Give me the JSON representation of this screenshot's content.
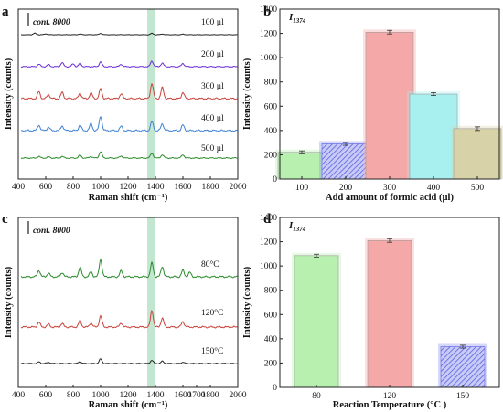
{
  "panels": {
    "a": "a",
    "b": "b",
    "c": "c",
    "d": "d"
  },
  "chart_data": [
    {
      "panel": "a",
      "type": "line",
      "xlabel": "Raman shift (cm⁻¹)",
      "ylabel": "Intensity (counts)",
      "xlim": [
        400,
        2000
      ],
      "xticks": [
        "400",
        "600",
        "800",
        "1000",
        "1200",
        "1400",
        "1600",
        "1800",
        "2000"
      ],
      "scale_label": "cont. 8000",
      "highlight_band": [
        1340,
        1400
      ],
      "grid": false,
      "series": [
        {
          "name": "100 µl",
          "color": "#222222",
          "amp": 0.18,
          "peaks": [
            [
              520,
              1.2
            ],
            [
              600,
              0.6
            ],
            [
              850,
              0.5
            ],
            [
              1000,
              1.0
            ],
            [
              1374,
              1.0
            ],
            [
              1450,
              0.5
            ],
            [
              1600,
              0.4
            ]
          ]
        },
        {
          "name": "200 µl",
          "color": "#6a2bd6",
          "amp": 0.55,
          "peaks": [
            [
              550,
              0.6
            ],
            [
              620,
              0.5
            ],
            [
              720,
              1.0
            ],
            [
              800,
              0.7
            ],
            [
              850,
              0.8
            ],
            [
              1000,
              1.2
            ],
            [
              1150,
              0.6
            ],
            [
              1374,
              1.4
            ],
            [
              1450,
              0.9
            ],
            [
              1600,
              0.8
            ]
          ]
        },
        {
          "name": "300 µl",
          "color": "#c8423b",
          "amp": 0.95,
          "peaks": [
            [
              550,
              1.0
            ],
            [
              620,
              0.6
            ],
            [
              720,
              0.9
            ],
            [
              850,
              0.8
            ],
            [
              930,
              0.8
            ],
            [
              1000,
              1.4
            ],
            [
              1150,
              0.7
            ],
            [
              1374,
              2.2
            ],
            [
              1450,
              1.6
            ],
            [
              1600,
              0.9
            ]
          ]
        },
        {
          "name": "400 µl",
          "color": "#3f82d4",
          "amp": 0.95,
          "peaks": [
            [
              550,
              0.8
            ],
            [
              620,
              0.5
            ],
            [
              720,
              0.7
            ],
            [
              850,
              0.8
            ],
            [
              930,
              1.0
            ],
            [
              1000,
              2.1
            ],
            [
              1150,
              0.6
            ],
            [
              1374,
              1.3
            ],
            [
              1450,
              1.0
            ],
            [
              1600,
              0.8
            ]
          ]
        },
        {
          "name": "500 µl",
          "color": "#2b8a2b",
          "amp": 0.55,
          "peaks": [
            [
              550,
              0.4
            ],
            [
              620,
              0.3
            ],
            [
              720,
              0.4
            ],
            [
              850,
              0.7
            ],
            [
              930,
              0.4
            ],
            [
              1000,
              1.6
            ],
            [
              1150,
              0.5
            ],
            [
              1374,
              1.2
            ],
            [
              1450,
              0.8
            ],
            [
              1600,
              0.8
            ]
          ]
        }
      ]
    },
    {
      "panel": "b",
      "type": "bar",
      "title": "I1374",
      "xlabel": "Add amount of formic acid (µl)",
      "ylabel": "Intensity (counts)",
      "categories": [
        "100",
        "200",
        "300",
        "400",
        "500"
      ],
      "values": [
        220,
        290,
        1210,
        700,
        415
      ],
      "errors": [
        12,
        12,
        15,
        12,
        15
      ],
      "colors": [
        "#b8f0b0",
        "#8a8ef0",
        "#f5a8a8",
        "#a8f0f0",
        "#d8d2a8"
      ],
      "hatched": [
        false,
        true,
        false,
        false,
        false
      ],
      "ylim": [
        0,
        1400
      ],
      "yticks": [
        "0",
        "200",
        "400",
        "600",
        "800",
        "1000",
        "1200",
        "1400"
      ]
    },
    {
      "panel": "c",
      "type": "line",
      "xlabel": "Raman shift (cm⁻¹)",
      "ylabel": "Intensity (counts)",
      "xlim": [
        400,
        2000
      ],
      "xticks": [
        "400",
        "600",
        "800",
        "1000",
        "1200",
        "1400",
        "1600",
        "1700",
        "1800",
        "2000"
      ],
      "scale_label": "cont. 8000",
      "highlight_band": [
        1340,
        1400
      ],
      "grid": false,
      "series": [
        {
          "name": "80°C",
          "color": "#2b8a2b",
          "amp": 1.0,
          "peaks": [
            [
              550,
              0.9
            ],
            [
              620,
              0.5
            ],
            [
              720,
              0.6
            ],
            [
              850,
              1.3
            ],
            [
              930,
              0.7
            ],
            [
              1000,
              2.4
            ],
            [
              1150,
              0.8
            ],
            [
              1374,
              1.9
            ],
            [
              1450,
              1.4
            ],
            [
              1600,
              0.9
            ],
            [
              1650,
              0.6
            ]
          ]
        },
        {
          "name": "120°C",
          "color": "#c8423b",
          "amp": 0.95,
          "peaks": [
            [
              550,
              0.7
            ],
            [
              620,
              0.4
            ],
            [
              720,
              0.5
            ],
            [
              850,
              0.9
            ],
            [
              930,
              0.6
            ],
            [
              1000,
              1.6
            ],
            [
              1150,
              0.6
            ],
            [
              1374,
              2.4
            ],
            [
              1450,
              1.3
            ],
            [
              1600,
              0.8
            ]
          ]
        },
        {
          "name": "150°C",
          "color": "#222222",
          "amp": 0.45,
          "peaks": [
            [
              550,
              0.5
            ],
            [
              620,
              0.4
            ],
            [
              850,
              0.6
            ],
            [
              1000,
              1.4
            ],
            [
              1374,
              1.0
            ],
            [
              1450,
              0.7
            ],
            [
              1600,
              0.4
            ]
          ]
        }
      ]
    },
    {
      "panel": "d",
      "type": "bar",
      "title": "I1374",
      "xlabel": "Reaction Temperature (°C )",
      "ylabel": "Intensity (counts)",
      "categories": [
        "80",
        "120",
        "150"
      ],
      "values": [
        1085,
        1210,
        335
      ],
      "errors": [
        12,
        15,
        12
      ],
      "colors": [
        "#b8f0b0",
        "#f5a8a8",
        "#8a8ef0"
      ],
      "hatched": [
        false,
        false,
        true
      ],
      "ylim": [
        0,
        1400
      ],
      "yticks": [
        "0",
        "200",
        "400",
        "600",
        "800",
        "1000",
        "1200",
        "1400"
      ]
    }
  ]
}
